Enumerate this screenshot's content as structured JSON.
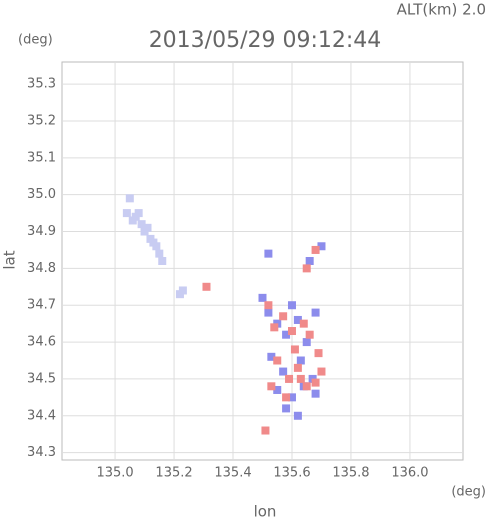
{
  "chart_data": {
    "type": "scatter",
    "title": "2013/05/29 09:12:44",
    "subtitle": "ALT(km) 2.0",
    "y_unit": "(deg)",
    "x_unit": "(deg)",
    "xlabel": "lon",
    "ylabel": "lat",
    "xlim": [
      134.82,
      136.18
    ],
    "ylim": [
      34.28,
      35.36
    ],
    "xticks": [
      {
        "value": 135,
        "label": "135.0"
      },
      135.2,
      135.4,
      135.6,
      135.8,
      {
        "value": 136,
        "label": "136.0"
      }
    ],
    "yticks": [
      34.3,
      34.4,
      34.5,
      34.6,
      34.7,
      34.8,
      34.9,
      {
        "value": 35,
        "label": "35.0"
      },
      35.1,
      35.2,
      35.3
    ],
    "grid": true,
    "series": [
      {
        "color": "#c8ccf2",
        "x": [
          135.05,
          135.04,
          135.07,
          135.08,
          135.09,
          135.1,
          135.12,
          135.13,
          135.14,
          135.15,
          135.16,
          135.11,
          135.06,
          135.22,
          135.23
        ],
        "y": [
          34.99,
          34.95,
          34.94,
          34.95,
          34.92,
          34.9,
          34.88,
          34.87,
          34.86,
          34.84,
          34.82,
          34.91,
          34.93,
          34.73,
          34.74
        ]
      },
      {
        "color": "#8c8cec",
        "x": [
          135.5,
          135.52,
          135.55,
          135.58,
          135.6,
          135.62,
          135.65,
          135.68,
          135.53,
          135.57,
          135.63,
          135.67,
          135.55,
          135.6,
          135.64,
          135.66,
          135.7,
          135.52,
          135.58,
          135.62,
          135.68
        ],
        "y": [
          34.72,
          34.68,
          34.65,
          34.62,
          34.7,
          34.66,
          34.6,
          34.68,
          34.56,
          34.52,
          34.55,
          34.5,
          34.47,
          34.45,
          34.48,
          34.82,
          34.86,
          34.84,
          34.42,
          34.4,
          34.46
        ]
      },
      {
        "color": "#f08a8a",
        "x": [
          135.52,
          135.54,
          135.57,
          135.6,
          135.61,
          135.64,
          135.66,
          135.69,
          135.55,
          135.59,
          135.62,
          135.65,
          135.53,
          135.58,
          135.63,
          135.68,
          135.7,
          135.65,
          135.68,
          135.51,
          135.31
        ],
        "y": [
          34.7,
          34.64,
          34.67,
          34.63,
          34.58,
          34.65,
          34.62,
          34.57,
          34.55,
          34.5,
          34.53,
          34.48,
          34.48,
          34.45,
          34.5,
          34.49,
          34.52,
          34.8,
          34.85,
          34.36,
          34.75
        ]
      }
    ]
  }
}
